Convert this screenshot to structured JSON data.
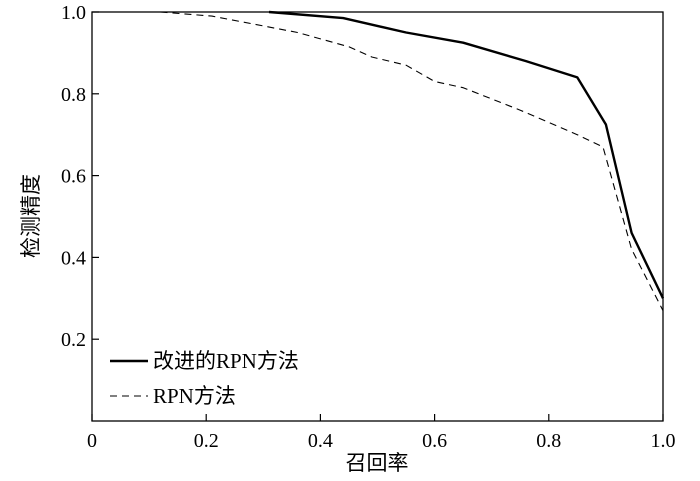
{
  "chart_data": {
    "type": "line",
    "xlabel": "召回率",
    "ylabel": "检测精度",
    "xlim": [
      0,
      1
    ],
    "ylim": [
      0,
      1
    ],
    "x_ticks": [
      0,
      0.2,
      0.4,
      0.6,
      0.8,
      1.0
    ],
    "x_tick_labels": [
      "0",
      "0.2",
      "0.4",
      "0.6",
      "0.8",
      "1.0"
    ],
    "y_ticks": [
      0.2,
      0.4,
      0.6,
      0.8,
      1.0
    ],
    "y_tick_labels": [
      "0.2",
      "0.4",
      "0.6",
      "0.8",
      "1.0"
    ],
    "grid": false,
    "legend_position": "bottom-left",
    "series": [
      {
        "name": "改进的RPN方法",
        "style": "solid",
        "color": "#000000",
        "points": [
          [
            0.31,
            1.0
          ],
          [
            0.44,
            0.985
          ],
          [
            0.55,
            0.95
          ],
          [
            0.65,
            0.925
          ],
          [
            0.76,
            0.88
          ],
          [
            0.85,
            0.84
          ],
          [
            0.9,
            0.725
          ],
          [
            0.945,
            0.46
          ],
          [
            1.0,
            0.3
          ]
        ]
      },
      {
        "name": "RPN方法",
        "style": "dashed",
        "color": "#000000",
        "points": [
          [
            0.12,
            1.0
          ],
          [
            0.21,
            0.99
          ],
          [
            0.36,
            0.95
          ],
          [
            0.45,
            0.915
          ],
          [
            0.49,
            0.89
          ],
          [
            0.55,
            0.87
          ],
          [
            0.6,
            0.83
          ],
          [
            0.65,
            0.815
          ],
          [
            0.75,
            0.76
          ],
          [
            0.85,
            0.7
          ],
          [
            0.895,
            0.67
          ],
          [
            0.945,
            0.42
          ],
          [
            1.0,
            0.27
          ]
        ]
      }
    ]
  }
}
